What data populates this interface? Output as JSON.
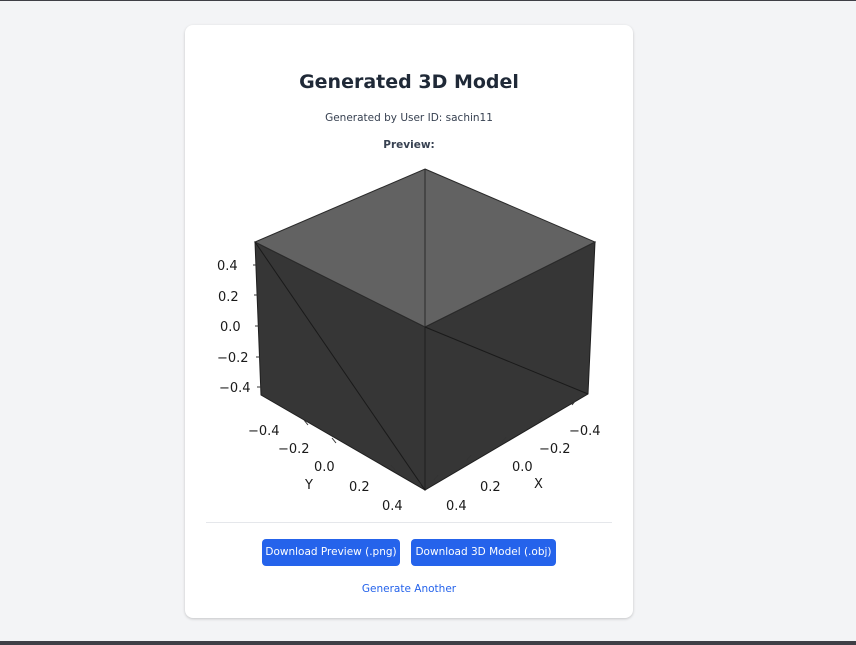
{
  "page": {
    "title": "Generated 3D Model",
    "user_line": "Generated by User ID: sachin11",
    "preview_label": "Preview:"
  },
  "actions": {
    "download_png_label": "Download Preview (.png)",
    "download_obj_label": "Download 3D Model (.obj)",
    "generate_another_label": "Generate Another"
  },
  "colors": {
    "background": "#f3f4f6",
    "card": "#ffffff",
    "primary": "#2563eb",
    "cube_top": "#626262",
    "cube_side": "#363636"
  },
  "plot": {
    "type": "3d-surface",
    "z_axis": {
      "ticks": [
        "0.4",
        "0.2",
        "0.0",
        "−0.2",
        "−0.4"
      ]
    },
    "y_axis": {
      "label": "Y",
      "ticks": [
        "−0.4",
        "−0.2",
        "0.0",
        "0.2",
        "0.4"
      ]
    },
    "x_axis": {
      "label": "X",
      "ticks": [
        "−0.4",
        "−0.2",
        "0.0",
        "0.2",
        "0.4"
      ]
    }
  }
}
